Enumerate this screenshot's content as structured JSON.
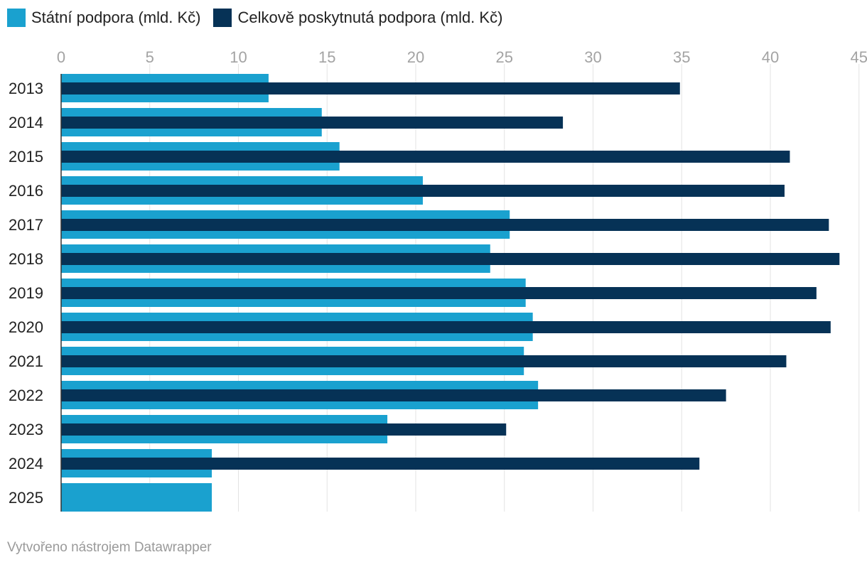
{
  "chart_data": {
    "type": "bar",
    "orientation": "horizontal",
    "categories": [
      "2013",
      "2014",
      "2015",
      "2016",
      "2017",
      "2018",
      "2019",
      "2020",
      "2021",
      "2022",
      "2023",
      "2024",
      "2025"
    ],
    "series": [
      {
        "name": "Státní podpora (mld. Kč)",
        "color": "#1aa1cf",
        "values": [
          11.7,
          14.7,
          15.7,
          20.4,
          25.3,
          24.2,
          26.2,
          26.6,
          26.1,
          26.9,
          18.4,
          8.5,
          8.5
        ]
      },
      {
        "name": "Celkově poskytnutá podpora (mld. Kč)",
        "color": "#063256",
        "values": [
          34.9,
          28.3,
          41.1,
          40.8,
          43.3,
          43.9,
          42.6,
          43.4,
          40.9,
          37.5,
          25.1,
          36.0,
          null
        ]
      }
    ],
    "xlim": [
      0,
      45
    ],
    "xticks": [
      0,
      5,
      10,
      15,
      20,
      25,
      30,
      35,
      40,
      45
    ],
    "grid": true,
    "legend_position": "top-left"
  },
  "footer": {
    "text": "Vytvořeno nástrojem Datawrapper"
  }
}
